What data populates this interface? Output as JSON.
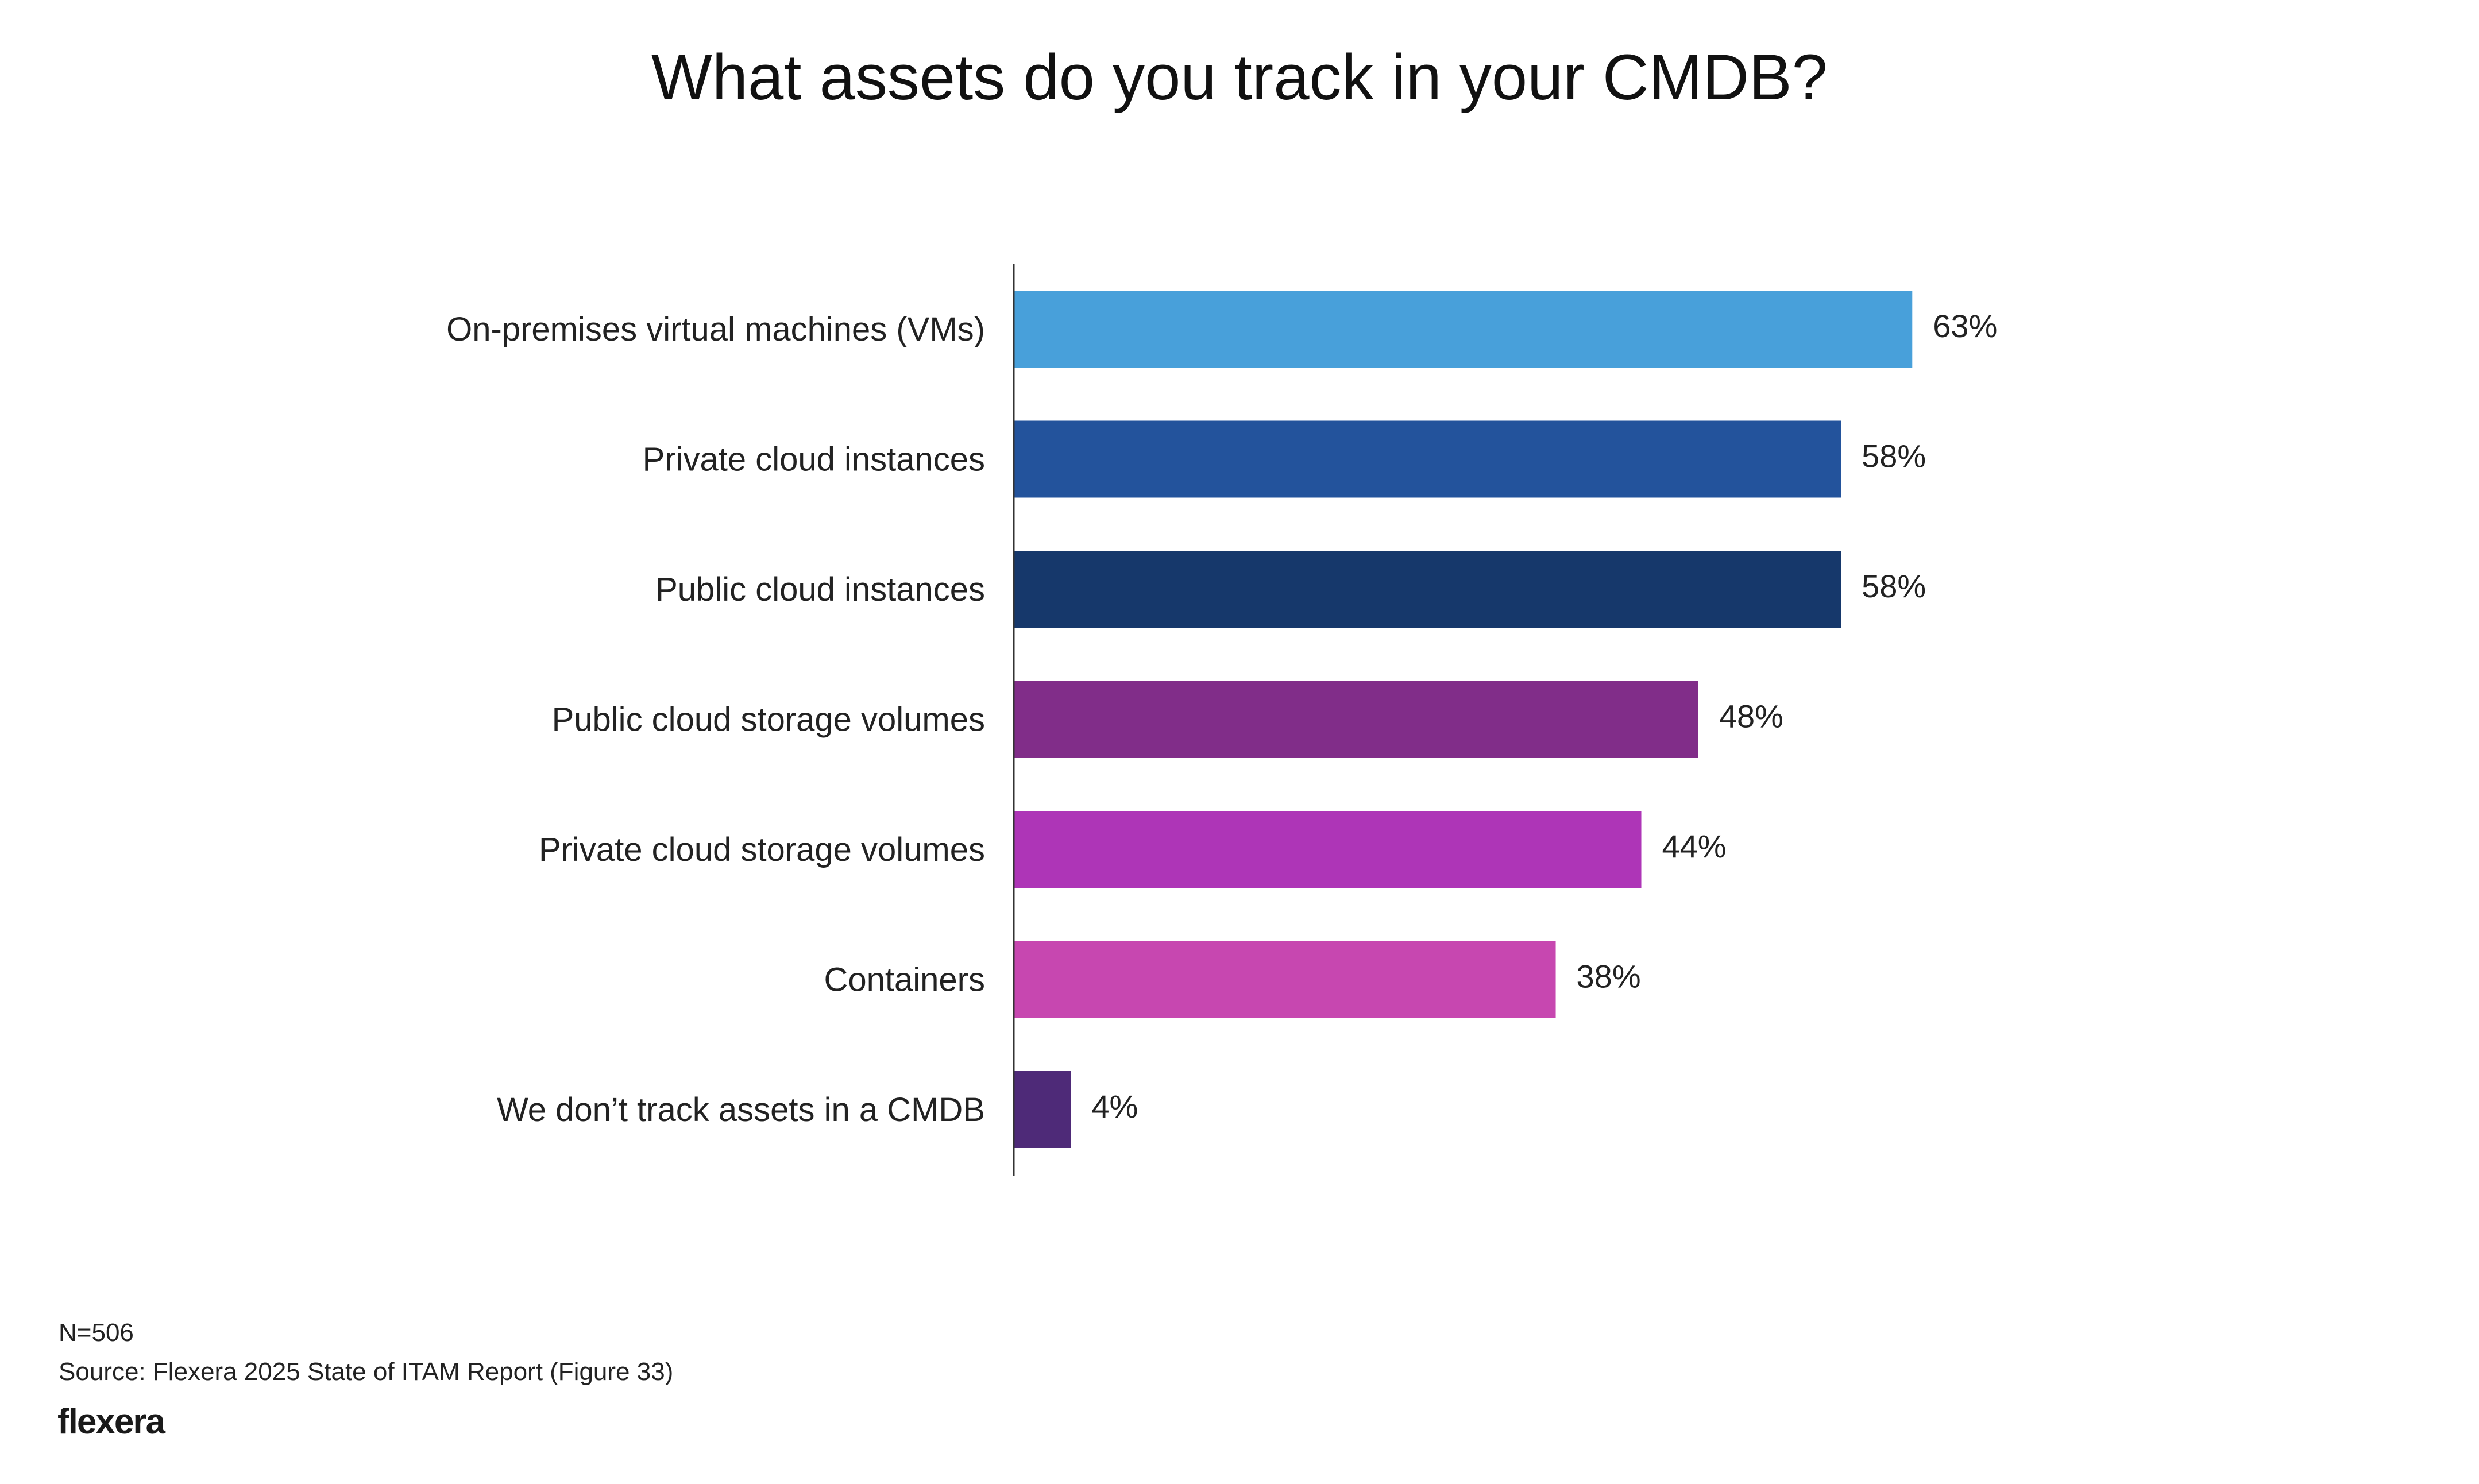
{
  "chart_data": {
    "type": "bar",
    "orientation": "horizontal",
    "title": "What assets do you track in your CMDB?",
    "categories": [
      "On-premises virtual machines (VMs)",
      "Private cloud instances",
      "Public cloud instances",
      "Public cloud storage volumes",
      "Private cloud storage volumes",
      "Containers",
      "We don’t track assets in a CMDB"
    ],
    "values": [
      63,
      58,
      58,
      48,
      44,
      38,
      4
    ],
    "value_labels": [
      "63%",
      "58%",
      "58%",
      "48%",
      "44%",
      "38%",
      "4%"
    ],
    "colors": [
      "#48A0DA",
      "#23539C",
      "#16386B",
      "#812D89",
      "#AE35B7",
      "#C747B0",
      "#4E2A78"
    ],
    "xlabel": "",
    "ylabel": "",
    "xlim": [
      0,
      100
    ],
    "grid": false
  },
  "footer": {
    "n": "N=506",
    "source": "Source: Flexera 2025 State of ITAM Report (Figure 33)",
    "logo": "flexera"
  }
}
